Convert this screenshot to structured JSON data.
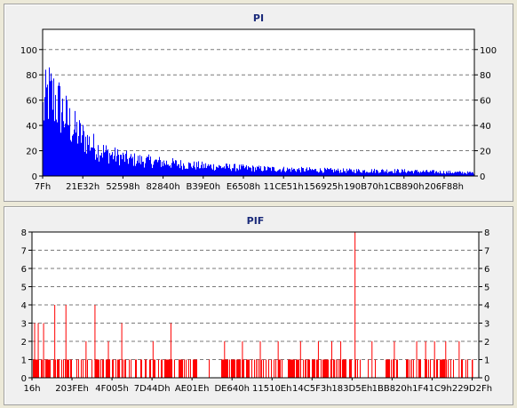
{
  "chart_data": [
    {
      "type": "bar",
      "title": "PI",
      "color": "#0000ff",
      "ylim": [
        0,
        116
      ],
      "yticks": [
        0,
        20,
        40,
        60,
        80,
        100
      ],
      "xticks": [
        "7Fh",
        "21E32h",
        "52598h",
        "82840h",
        "B39E0h",
        "E6508h",
        "11CE51h",
        "156925h",
        "190B70h",
        "1CB890h",
        "206F88h"
      ],
      "grid": true,
      "profile": [
        [
          0,
          62
        ],
        [
          0.012,
          78
        ],
        [
          0.03,
          72
        ],
        [
          0.05,
          58
        ],
        [
          0.07,
          45
        ],
        [
          0.09,
          38
        ],
        [
          0.11,
          31
        ],
        [
          0.13,
          25
        ],
        [
          0.16,
          20
        ],
        [
          0.2,
          16
        ],
        [
          0.25,
          14
        ],
        [
          0.3,
          12
        ],
        [
          0.35,
          10
        ],
        [
          0.4,
          9
        ],
        [
          0.45,
          8
        ],
        [
          0.5,
          7
        ],
        [
          0.6,
          6
        ],
        [
          0.7,
          5
        ],
        [
          0.8,
          5
        ],
        [
          0.9,
          4
        ],
        [
          1,
          3
        ]
      ]
    },
    {
      "type": "bar",
      "title": "PIF",
      "color": "#ff0000",
      "ylim": [
        0,
        8
      ],
      "yticks": [
        0,
        1,
        2,
        3,
        4,
        5,
        6,
        7,
        8
      ],
      "xticks": [
        "16h",
        "203FEh",
        "4F005h",
        "7D44Dh",
        "AE01Eh",
        "DE640h",
        "11510Eh",
        "14C5F3h",
        "183D5Eh",
        "1BB820h",
        "1F41C9h",
        "229D2Fh"
      ],
      "grid": true,
      "spikes": [
        [
          0.005,
          3
        ],
        [
          0.013,
          3
        ],
        [
          0.025,
          3
        ],
        [
          0.05,
          4
        ],
        [
          0.075,
          4
        ],
        [
          0.14,
          4
        ],
        [
          0.2,
          3
        ],
        [
          0.31,
          3
        ],
        [
          0.12,
          2
        ],
        [
          0.17,
          2
        ],
        [
          0.27,
          2
        ],
        [
          0.43,
          2
        ],
        [
          0.47,
          2
        ],
        [
          0.51,
          2
        ],
        [
          0.55,
          2
        ],
        [
          0.6,
          2
        ],
        [
          0.64,
          2
        ],
        [
          0.67,
          2
        ],
        [
          0.69,
          2
        ],
        [
          0.722,
          8
        ],
        [
          0.76,
          2
        ],
        [
          0.81,
          2
        ],
        [
          0.86,
          2
        ],
        [
          0.88,
          2
        ],
        [
          0.9,
          2
        ],
        [
          0.925,
          2
        ],
        [
          0.955,
          2
        ],
        [
          0.985,
          1
        ]
      ]
    }
  ]
}
